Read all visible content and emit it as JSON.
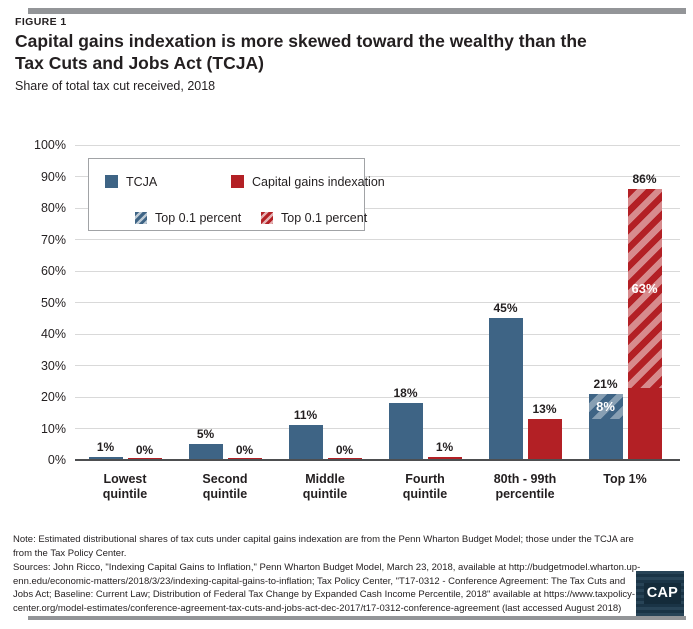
{
  "header": {
    "figure_label": "FIGURE 1",
    "title": "Capital gains indexation is more skewed toward the wealthy than the\nTax Cuts and Jobs Act (TCJA)",
    "subtitle": "Share of total tax cut received, 2018"
  },
  "chart_data": {
    "type": "bar",
    "title": "Capital gains indexation is more skewed toward the wealthy than the Tax Cuts and Jobs Act (TCJA)",
    "subtitle": "Share of total tax cut received, 2018",
    "categories": [
      "Lowest\nquintile",
      "Second\nquintile",
      "Middle\nquintile",
      "Fourth\nquintile",
      "80th - 99th\npercentile",
      "Top 1%"
    ],
    "series": [
      {
        "name": "TCJA",
        "color": "#3e6485",
        "values": [
          1,
          5,
          11,
          18,
          45,
          21
        ]
      },
      {
        "name": "Capital gains indexation",
        "color": "#b32025",
        "values": [
          0,
          0,
          0,
          1,
          13,
          86
        ]
      }
    ],
    "overlays": [
      {
        "name": "Top 0.1 percent",
        "series_index": 0,
        "category_index": 5,
        "from": 13,
        "to": 21,
        "label": "8%",
        "stripe": "rgba(255,255,255,0.38)"
      },
      {
        "name": "Top 0.1 percent",
        "series_index": 1,
        "category_index": 5,
        "from": 23,
        "to": 86,
        "label": "63%",
        "stripe": "rgba(255,255,255,0.48)"
      }
    ],
    "ylim": [
      0,
      100
    ],
    "ytick_step": 10,
    "ytick_suffix": "%",
    "value_suffix": "%",
    "grid": true,
    "legend_position": "top-left"
  },
  "legend": {
    "items": [
      {
        "label": "TCJA",
        "type": "solid",
        "color": "#3e6485"
      },
      {
        "label": "Capital gains indexation",
        "type": "solid",
        "color": "#b32025"
      },
      {
        "label": "Top 0.1 percent",
        "type": "hatch",
        "color": "#3e6485"
      },
      {
        "label": "Top 0.1 percent",
        "type": "hatch",
        "color": "#b32025"
      }
    ]
  },
  "footer": {
    "note": "Note: Estimated distributional shares of tax cuts under capital gains indexation are from the Penn Wharton Budget Model; those under the TCJA are\nfrom the Tax Policy Center.",
    "sources": "Sources: John Ricco, \"Indexing Capital Gains to Inflation,\" Penn Wharton Budget Model, March 23, 2018, available at http://budgetmodel.wharton.up-\nenn.edu/economic-matters/2018/3/23/indexing-capital-gains-to-inflation; Tax Policy Center, \"T17-0312 - Conference Agreement: The Tax Cuts and\nJobs Act; Baseline: Current Law; Distribution of Federal Tax Change by Expanded Cash Income Percentile, 2018\" available at https://www.taxpolicy-\ncenter.org/model-estimates/conference-agreement-tax-cuts-and-jobs-act-dec-2017/t17-0312-conference-agreement (last accessed August 2018)",
    "logo_text": "CAP"
  },
  "colors": {
    "rule_gray": "#939598",
    "gridline": "#d9d9d9",
    "axis_baseline": "#4d4e50",
    "tcja_blue": "#3e6485",
    "indexation_red": "#b32025",
    "logo_navy": "#1d3a4e",
    "text": "#231f20"
  }
}
